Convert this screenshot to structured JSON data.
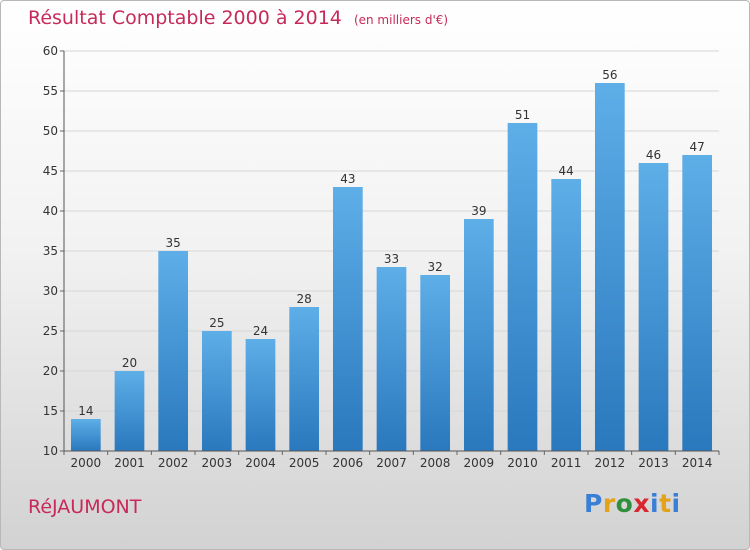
{
  "title": "Résultat Comptable 2000 à 2014",
  "subtitle": "(en milliers d'€)",
  "commune": "RéJAUMONT",
  "logo": {
    "text": "Proxiti",
    "letters": [
      {
        "char": "P",
        "color": "#3a7fd6"
      },
      {
        "char": "r",
        "color": "#e3a21a"
      },
      {
        "char": "o",
        "color": "#2f8f3a"
      },
      {
        "char": "x",
        "color": "#d9262f"
      },
      {
        "char": "i",
        "color": "#3a7fd6"
      },
      {
        "char": "t",
        "color": "#e3a21a"
      },
      {
        "char": "i",
        "color": "#3a7fd6"
      }
    ]
  },
  "colors": {
    "accent_text": "#c72a5a",
    "bar_top": "#5eaee8",
    "bar_bottom": "#2a78bd",
    "grid": "#d6d6d6",
    "axis_text": "#333333"
  },
  "chart_data": {
    "type": "bar",
    "categories": [
      "2000",
      "2001",
      "2002",
      "2003",
      "2004",
      "2005",
      "2006",
      "2007",
      "2008",
      "2009",
      "2010",
      "2011",
      "2012",
      "2013",
      "2014"
    ],
    "values": [
      14,
      20,
      35,
      25,
      24,
      28,
      43,
      33,
      32,
      39,
      51,
      44,
      56,
      46,
      47
    ],
    "title": "Résultat Comptable 2000 à 2014",
    "subtitle": "(en milliers d'€)",
    "xlabel": "",
    "ylabel": "",
    "ylim": [
      10,
      60
    ],
    "yticks": [
      10,
      15,
      20,
      25,
      30,
      35,
      40,
      45,
      50,
      55,
      60
    ],
    "grid": true,
    "data_labels": true
  }
}
